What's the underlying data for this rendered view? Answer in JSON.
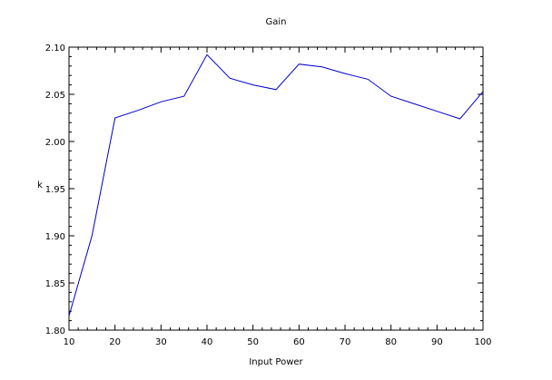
{
  "chart_data": {
    "type": "line",
    "title": "Gain",
    "xlabel": "Input Power",
    "ylabel": "k",
    "xlim": [
      10,
      100
    ],
    "ylim": [
      1.8,
      2.1
    ],
    "x_ticks": [
      "10",
      "20",
      "30",
      "40",
      "50",
      "60",
      "70",
      "80",
      "90",
      "100"
    ],
    "y_ticks": [
      "1.80",
      "1.85",
      "1.90",
      "1.95",
      "2.00",
      "2.05",
      "2.10"
    ],
    "grid": false,
    "series": [
      {
        "color": "#0000cc",
        "x": [
          10,
          15,
          20,
          25,
          30,
          35,
          40,
          45,
          50,
          55,
          60,
          65,
          70,
          75,
          80,
          85,
          90,
          95,
          100
        ],
        "y": [
          1.815,
          1.9,
          2.025,
          2.033,
          2.042,
          2.048,
          2.092,
          2.067,
          2.06,
          2.055,
          2.082,
          2.079,
          2.072,
          2.066,
          2.048,
          2.04,
          2.032,
          2.024,
          2.053
        ]
      }
    ]
  }
}
